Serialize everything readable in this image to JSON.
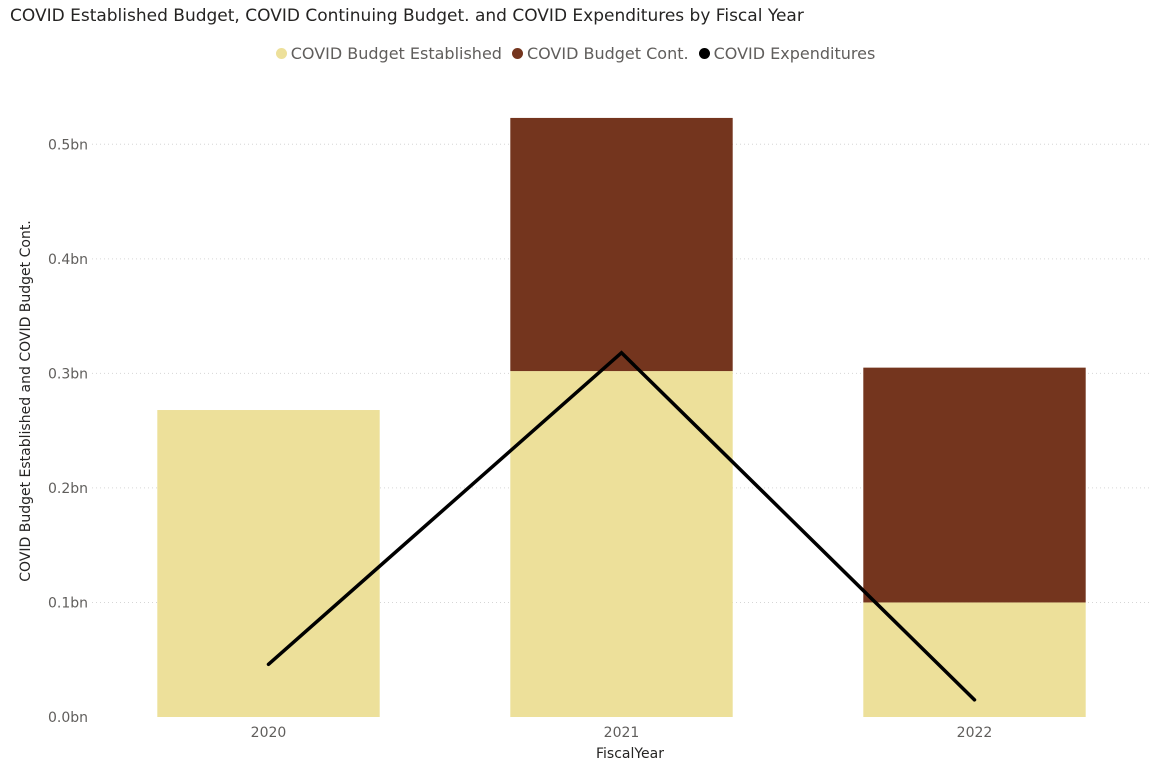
{
  "chart_data": {
    "type": "bar",
    "title": "COVID Established Budget, COVID Continuing Budget. and COVID Expenditures by Fiscal Year",
    "xlabel": "FiscalYear",
    "ylabel": "COVID Budget Established and COVID Budget Cont.",
    "categories": [
      "2020",
      "2021",
      "2022"
    ],
    "y_ticks": [
      "0.0bn",
      "0.1bn",
      "0.2bn",
      "0.3bn",
      "0.4bn",
      "0.5bn"
    ],
    "ylim": [
      0,
      0.55
    ],
    "stacked": true,
    "grid": true,
    "legend_position": "top-center",
    "series": [
      {
        "name": "COVID Budget Established",
        "kind": "bar",
        "color": "#ede09a",
        "values": [
          0.268,
          0.302,
          0.1
        ]
      },
      {
        "name": "COVID Budget Cont.",
        "kind": "bar",
        "color": "#74351e",
        "values": [
          0,
          0.221,
          0.205
        ]
      },
      {
        "name": "COVID Expenditures",
        "kind": "line",
        "color": "#000000",
        "values": [
          0.046,
          0.318,
          0.015
        ]
      }
    ]
  }
}
